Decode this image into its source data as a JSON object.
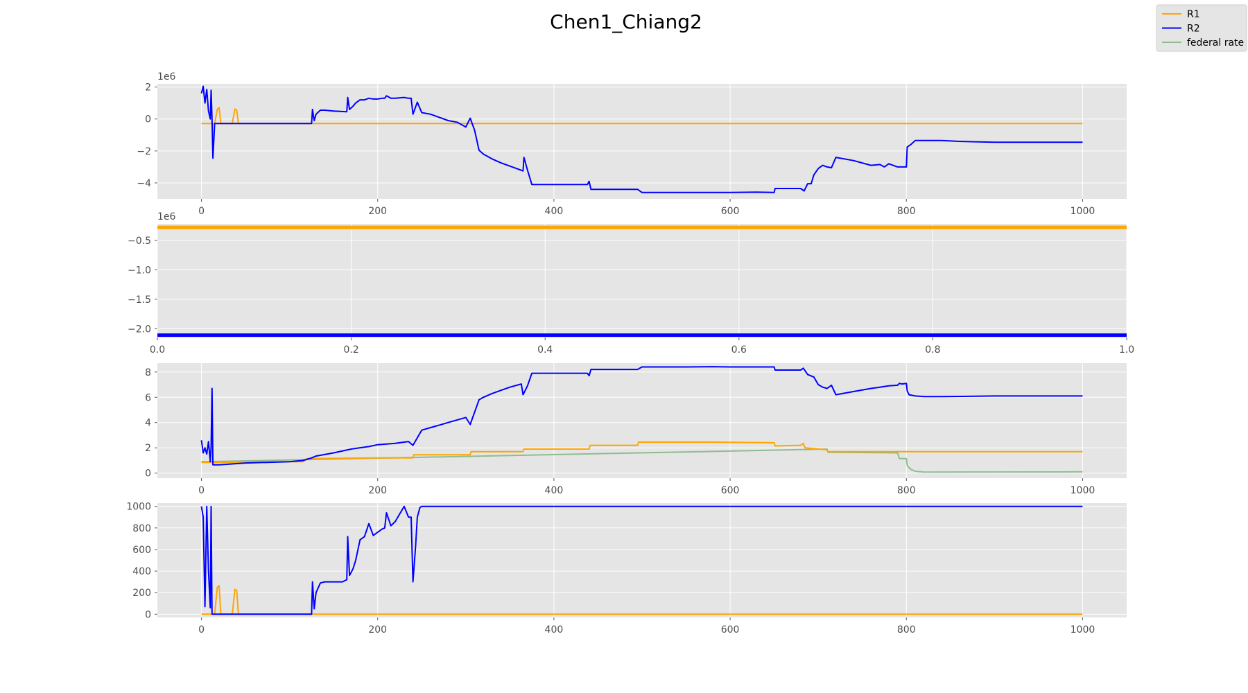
{
  "figure": {
    "title": "Chen1_Chiang2"
  },
  "legend": {
    "placement": "top-right",
    "entries": [
      {
        "label": "R1",
        "color": "#ffa500"
      },
      {
        "label": "R2",
        "color": "#0000ff"
      },
      {
        "label": "federal rate",
        "color": "#8fbc8f"
      }
    ]
  },
  "colors": {
    "R1": "#ffa500",
    "R2": "#0000ff",
    "federal_rate": "#8fbc8f",
    "R1_R2_overlap": "#a59a1e",
    "panel_bg": "#e5e5e5",
    "grid": "#ffffff"
  },
  "chart_data": [
    {
      "type": "line",
      "panel": 1,
      "grid": true,
      "xlim": [
        -50,
        1050
      ],
      "ylim": [
        -5,
        2.2
      ],
      "y_offset_label": "1e6",
      "x_ticks": [
        0,
        200,
        400,
        600,
        800,
        1000
      ],
      "y_ticks": [
        2,
        0,
        -2,
        -4
      ],
      "series": [
        {
          "name": "R1",
          "color": "#ffa500",
          "x": [
            0,
            15,
            18,
            20,
            22,
            35,
            38,
            40,
            42,
            50,
            1000
          ],
          "y": [
            -0.28,
            -0.28,
            0.6,
            0.72,
            -0.28,
            -0.28,
            0.62,
            0.55,
            -0.28,
            -0.28,
            -0.28
          ]
        },
        {
          "name": "R2",
          "color": "#0000ff",
          "x": [
            0,
            2,
            4,
            6,
            8,
            10,
            11,
            12,
            13,
            15,
            20,
            50,
            100,
            125,
            126,
            128,
            130,
            135,
            140,
            150,
            165,
            166,
            168,
            172,
            175,
            180,
            185,
            190,
            195,
            200,
            205,
            208,
            210,
            215,
            220,
            230,
            235,
            238,
            240,
            245,
            250,
            260,
            270,
            280,
            290,
            300,
            305,
            310,
            315,
            320,
            330,
            340,
            350,
            360,
            365,
            366,
            370,
            375,
            380,
            400,
            420,
            438,
            440,
            442,
            450,
            480,
            495,
            500,
            550,
            600,
            630,
            650,
            651,
            680,
            684,
            688,
            692,
            695,
            700,
            705,
            710,
            715,
            720,
            740,
            760,
            770,
            775,
            780,
            790,
            800,
            801,
            805,
            808,
            810,
            815,
            820,
            840,
            860,
            900,
            1000
          ],
          "y": [
            1.6,
            2.05,
            1.0,
            1.85,
            0.5,
            0.0,
            1.8,
            0.0,
            -2.45,
            -0.28,
            -0.28,
            -0.28,
            -0.28,
            -0.28,
            0.6,
            -0.1,
            0.3,
            0.55,
            0.55,
            0.5,
            0.45,
            1.35,
            0.6,
            0.8,
            1.0,
            1.2,
            1.2,
            1.3,
            1.25,
            1.25,
            1.3,
            1.3,
            1.45,
            1.3,
            1.3,
            1.35,
            1.3,
            1.3,
            0.3,
            1.05,
            0.4,
            0.3,
            0.1,
            -0.1,
            -0.2,
            -0.5,
            0.05,
            -0.7,
            -1.95,
            -2.2,
            -2.5,
            -2.75,
            -2.95,
            -3.15,
            -3.25,
            -2.4,
            -3.2,
            -4.1,
            -4.1,
            -4.1,
            -4.1,
            -4.1,
            -3.9,
            -4.4,
            -4.4,
            -4.4,
            -4.4,
            -4.6,
            -4.6,
            -4.6,
            -4.58,
            -4.6,
            -4.35,
            -4.35,
            -4.5,
            -4.05,
            -4.05,
            -3.5,
            -3.1,
            -2.9,
            -3.0,
            -3.05,
            -2.4,
            -2.6,
            -2.9,
            -2.85,
            -3.0,
            -2.8,
            -3.0,
            -3.0,
            -1.75,
            -1.6,
            -1.45,
            -1.35,
            -1.35,
            -1.35,
            -1.35,
            -1.4,
            -1.45,
            -1.45
          ]
        }
      ]
    },
    {
      "type": "line",
      "panel": 2,
      "grid": true,
      "xlim": [
        0,
        1
      ],
      "ylim": [
        -2.15,
        -0.22
      ],
      "y_offset_label": "1e6",
      "x_ticks": [
        "0.0",
        "0.2",
        "0.4",
        "0.6",
        "0.8",
        "1.0"
      ],
      "y_ticks": [
        "−0.5",
        "−1.0",
        "−1.5",
        "−2.0"
      ],
      "series": [
        {
          "name": "R1",
          "color": "#ffa500",
          "x": [
            0,
            1
          ],
          "y": [
            -0.28,
            -0.28
          ]
        },
        {
          "name": "R2",
          "color": "#0000ff",
          "x": [
            0,
            1
          ],
          "y": [
            -2.11,
            -2.11
          ]
        }
      ]
    },
    {
      "type": "line",
      "panel": 3,
      "grid": true,
      "xlim": [
        -50,
        1050
      ],
      "ylim": [
        -0.4,
        8.7
      ],
      "x_ticks": [
        0,
        200,
        400,
        600,
        800,
        1000
      ],
      "y_ticks": [
        8,
        6,
        4,
        2,
        0
      ],
      "series": [
        {
          "name": "federal rate",
          "color": "#8fbc8f",
          "x": [
            0,
            710,
            711,
            790,
            792,
            800,
            801,
            805,
            810,
            820,
            1000
          ],
          "y": [
            0.9,
            1.9,
            1.65,
            1.6,
            1.15,
            1.15,
            0.6,
            0.3,
            0.15,
            0.08,
            0.1
          ]
        },
        {
          "name": "R1",
          "color": "#ffa500",
          "x": [
            0,
            50,
            51,
            100,
            115,
            120,
            200,
            240,
            241,
            305,
            306,
            365,
            366,
            440,
            441,
            495,
            496,
            580,
            650,
            651,
            680,
            683,
            685,
            710,
            711,
            1000
          ],
          "y": [
            0.85,
            0.85,
            0.9,
            0.9,
            0.9,
            1.15,
            1.2,
            1.2,
            1.45,
            1.45,
            1.7,
            1.7,
            1.9,
            1.9,
            2.2,
            2.2,
            2.45,
            2.45,
            2.4,
            2.15,
            2.2,
            2.35,
            2.0,
            1.85,
            1.7,
            1.7
          ]
        },
        {
          "name": "R2",
          "color": "#0000ff",
          "x": [
            0,
            2,
            4,
            6,
            8,
            10,
            11,
            12,
            13,
            15,
            20,
            50,
            100,
            115,
            125,
            130,
            150,
            170,
            190,
            200,
            220,
            235,
            240,
            250,
            260,
            270,
            280,
            290,
            300,
            305,
            315,
            320,
            330,
            340,
            350,
            363,
            365,
            370,
            375,
            380,
            400,
            438,
            440,
            442,
            450,
            495,
            500,
            550,
            580,
            600,
            650,
            651,
            680,
            683,
            688,
            695,
            700,
            705,
            710,
            715,
            720,
            740,
            760,
            770,
            780,
            790,
            792,
            795,
            800,
            801,
            803,
            810,
            820,
            840,
            900,
            1000
          ],
          "y": [
            2.6,
            1.6,
            2.0,
            1.5,
            2.5,
            0.9,
            2.1,
            6.7,
            0.65,
            0.65,
            0.65,
            0.8,
            0.9,
            1.0,
            1.2,
            1.35,
            1.6,
            1.9,
            2.1,
            2.25,
            2.35,
            2.5,
            2.2,
            3.4,
            3.6,
            3.8,
            4.0,
            4.2,
            4.4,
            3.85,
            5.8,
            6.0,
            6.3,
            6.55,
            6.8,
            7.05,
            6.2,
            6.9,
            7.9,
            7.9,
            7.9,
            7.9,
            7.7,
            8.2,
            8.2,
            8.2,
            8.4,
            8.4,
            8.42,
            8.4,
            8.4,
            8.15,
            8.15,
            8.3,
            7.8,
            7.6,
            7.0,
            6.8,
            6.7,
            6.95,
            6.2,
            6.45,
            6.7,
            6.8,
            6.9,
            6.95,
            7.1,
            7.05,
            7.1,
            6.5,
            6.2,
            6.1,
            6.05,
            6.05,
            6.1,
            6.1
          ]
        }
      ]
    },
    {
      "type": "line",
      "panel": 4,
      "grid": true,
      "xlim": [
        -50,
        1050
      ],
      "ylim": [
        -30,
        1030
      ],
      "x_ticks": [
        0,
        200,
        400,
        600,
        800,
        1000
      ],
      "y_ticks": [
        1000,
        800,
        600,
        400,
        200,
        0
      ],
      "series": [
        {
          "name": "R1",
          "color": "#ffa500",
          "x": [
            0,
            15,
            18,
            20,
            22,
            35,
            38,
            40,
            42,
            50,
            1000
          ],
          "y": [
            0,
            0,
            250,
            265,
            0,
            0,
            230,
            220,
            0,
            0,
            0
          ]
        },
        {
          "name": "R2",
          "color": "#0000ff",
          "x": [
            0,
            2,
            4,
            6,
            8,
            10,
            11,
            12,
            13,
            15,
            20,
            50,
            100,
            125,
            126,
            128,
            130,
            135,
            140,
            150,
            160,
            165,
            166,
            168,
            172,
            175,
            180,
            185,
            190,
            195,
            200,
            205,
            208,
            210,
            215,
            220,
            230,
            235,
            238,
            240,
            243,
            245,
            248,
            250,
            1000
          ],
          "y": [
            1000,
            900,
            70,
            1000,
            400,
            60,
            1000,
            0,
            0,
            0,
            0,
            0,
            0,
            0,
            300,
            50,
            200,
            290,
            300,
            300,
            300,
            320,
            720,
            360,
            420,
            500,
            690,
            720,
            840,
            730,
            760,
            790,
            800,
            940,
            820,
            860,
            1000,
            900,
            900,
            300,
            630,
            900,
            990,
            1000,
            1000
          ]
        }
      ]
    }
  ]
}
